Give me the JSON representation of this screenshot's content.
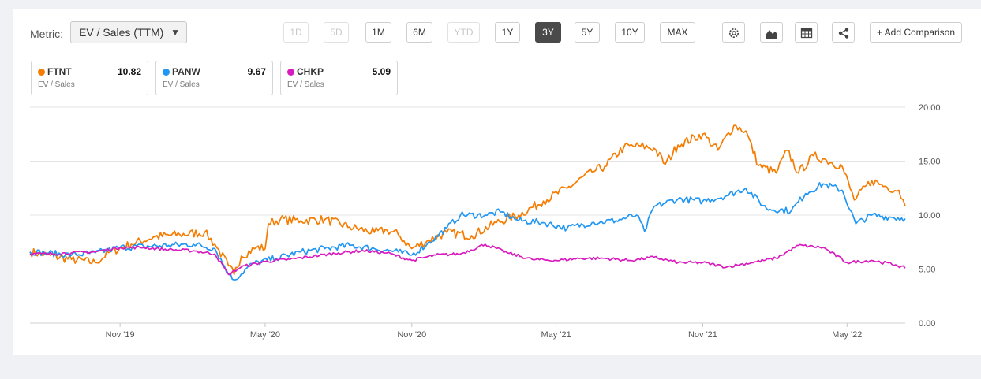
{
  "toolbar": {
    "metric_label": "Metric:",
    "metric_value": "EV / Sales (TTM)",
    "ranges": [
      {
        "label": "1D",
        "state": "disabled"
      },
      {
        "label": "5D",
        "state": "disabled"
      },
      {
        "label": "1M",
        "state": "normal"
      },
      {
        "label": "6M",
        "state": "normal"
      },
      {
        "label": "YTD",
        "state": "disabled"
      },
      {
        "label": "1Y",
        "state": "normal"
      },
      {
        "label": "3Y",
        "state": "active"
      },
      {
        "label": "5Y",
        "state": "normal"
      },
      {
        "label": "10Y",
        "state": "normal"
      },
      {
        "label": "MAX",
        "state": "normal"
      }
    ],
    "icons": [
      "gear-icon",
      "area-chart-icon",
      "table-icon",
      "share-icon"
    ],
    "add_comparison": "+ Add Comparison"
  },
  "legend_cards": [
    {
      "ticker": "FTNT",
      "value": "10.82",
      "metric": "EV / Sales",
      "color": "#f57c00"
    },
    {
      "ticker": "PANW",
      "value": "9.67",
      "metric": "EV / Sales",
      "color": "#2196f3"
    },
    {
      "ticker": "CHKP",
      "value": "5.09",
      "metric": "EV / Sales",
      "color": "#d81bbf"
    }
  ],
  "chart_data": {
    "type": "line",
    "title": "",
    "xlabel": "",
    "ylabel": "",
    "x_range": [
      "2019-07-11",
      "2022-07-13"
    ],
    "ylim": [
      0,
      20
    ],
    "y_ticks": [
      "0.00",
      "5.00",
      "10.00",
      "15.00",
      "20.00"
    ],
    "x_ticks": [
      {
        "date": "2019-11-01",
        "label": "Nov '19"
      },
      {
        "date": "2020-05-01",
        "label": "May '20"
      },
      {
        "date": "2020-11-01",
        "label": "Nov '20"
      },
      {
        "date": "2021-05-01",
        "label": "May '21"
      },
      {
        "date": "2021-11-01",
        "label": "Nov '21"
      },
      {
        "date": "2022-05-01",
        "label": "May '22"
      }
    ],
    "grid": "horizontal",
    "axis_side": "right",
    "series": [
      {
        "name": "FTNT",
        "color": "#f57c00",
        "points": [
          [
            "2019-07-11",
            6.6
          ],
          [
            "2019-08-01",
            6.3
          ],
          [
            "2019-09-01",
            5.9
          ],
          [
            "2019-10-01",
            5.6
          ],
          [
            "2019-10-20",
            6.6
          ],
          [
            "2019-11-15",
            7.3
          ],
          [
            "2019-12-15",
            8.0
          ],
          [
            "2020-01-15",
            8.2
          ],
          [
            "2020-02-15",
            8.4
          ],
          [
            "2020-02-28",
            7.3
          ],
          [
            "2020-03-16",
            5.3
          ],
          [
            "2020-03-23",
            4.5
          ],
          [
            "2020-04-01",
            6.2
          ],
          [
            "2020-04-20",
            7.0
          ],
          [
            "2020-05-01",
            6.9
          ],
          [
            "2020-05-05",
            9.2
          ],
          [
            "2020-05-20",
            9.6
          ],
          [
            "2020-06-15",
            9.5
          ],
          [
            "2020-07-15",
            9.6
          ],
          [
            "2020-08-15",
            8.9
          ],
          [
            "2020-09-15",
            8.4
          ],
          [
            "2020-10-01",
            8.6
          ],
          [
            "2020-10-15",
            8.2
          ],
          [
            "2020-11-01",
            6.9
          ],
          [
            "2020-11-20",
            7.6
          ],
          [
            "2020-12-15",
            8.4
          ],
          [
            "2021-01-15",
            8.1
          ],
          [
            "2021-02-15",
            9.3
          ],
          [
            "2021-03-15",
            10.0
          ],
          [
            "2021-04-15",
            11.3
          ],
          [
            "2021-05-15",
            12.5
          ],
          [
            "2021-06-15",
            14.0
          ],
          [
            "2021-07-01",
            14.5
          ],
          [
            "2021-07-25",
            16.3
          ],
          [
            "2021-08-15",
            16.4
          ],
          [
            "2021-09-01",
            16.2
          ],
          [
            "2021-09-15",
            14.7
          ],
          [
            "2021-10-01",
            16.5
          ],
          [
            "2021-11-01",
            17.5
          ],
          [
            "2021-11-20",
            16.0
          ],
          [
            "2021-12-10",
            18.3
          ],
          [
            "2021-12-25",
            17.8
          ],
          [
            "2022-01-10",
            14.6
          ],
          [
            "2022-02-01",
            13.9
          ],
          [
            "2022-02-15",
            16.0
          ],
          [
            "2022-03-01",
            13.9
          ],
          [
            "2022-03-20",
            15.5
          ],
          [
            "2022-04-05",
            15.1
          ],
          [
            "2022-04-25",
            14.5
          ],
          [
            "2022-05-10",
            11.4
          ],
          [
            "2022-06-01",
            13.2
          ],
          [
            "2022-06-20",
            12.6
          ],
          [
            "2022-07-05",
            12.3
          ],
          [
            "2022-07-13",
            10.82
          ]
        ]
      },
      {
        "name": "PANW",
        "color": "#2196f3",
        "points": [
          [
            "2019-07-11",
            6.6
          ],
          [
            "2019-08-01",
            6.5
          ],
          [
            "2019-09-01",
            6.3
          ],
          [
            "2019-10-01",
            6.5
          ],
          [
            "2019-11-01",
            7.0
          ],
          [
            "2019-12-01",
            7.1
          ],
          [
            "2020-01-01",
            7.2
          ],
          [
            "2020-02-01",
            7.3
          ],
          [
            "2020-02-28",
            6.9
          ],
          [
            "2020-03-16",
            4.6
          ],
          [
            "2020-03-23",
            4.0
          ],
          [
            "2020-04-15",
            5.5
          ],
          [
            "2020-05-15",
            6.0
          ],
          [
            "2020-06-15",
            6.6
          ],
          [
            "2020-07-15",
            6.9
          ],
          [
            "2020-08-15",
            7.2
          ],
          [
            "2020-09-15",
            6.9
          ],
          [
            "2020-10-15",
            6.6
          ],
          [
            "2020-11-01",
            6.3
          ],
          [
            "2020-11-20",
            7.3
          ],
          [
            "2020-12-15",
            8.8
          ],
          [
            "2021-01-01",
            10.0
          ],
          [
            "2021-02-01",
            10.0
          ],
          [
            "2021-02-20",
            10.3
          ],
          [
            "2021-03-15",
            9.5
          ],
          [
            "2021-04-15",
            9.3
          ],
          [
            "2021-05-15",
            8.8
          ],
          [
            "2021-06-15",
            9.3
          ],
          [
            "2021-07-15",
            9.5
          ],
          [
            "2021-08-10",
            10.0
          ],
          [
            "2021-08-20",
            8.5
          ],
          [
            "2021-09-01",
            10.8
          ],
          [
            "2021-10-01",
            11.5
          ],
          [
            "2021-11-01",
            11.3
          ],
          [
            "2021-12-01",
            11.8
          ],
          [
            "2021-12-25",
            12.5
          ],
          [
            "2022-01-20",
            10.6
          ],
          [
            "2022-02-20",
            10.4
          ],
          [
            "2022-03-10",
            12.0
          ],
          [
            "2022-04-01",
            12.9
          ],
          [
            "2022-04-25",
            12.3
          ],
          [
            "2022-05-12",
            9.2
          ],
          [
            "2022-06-01",
            10.0
          ],
          [
            "2022-06-25",
            9.8
          ],
          [
            "2022-07-13",
            9.67
          ]
        ]
      },
      {
        "name": "CHKP",
        "color": "#d81bbf",
        "points": [
          [
            "2019-07-11",
            6.4
          ],
          [
            "2019-08-01",
            6.4
          ],
          [
            "2019-09-01",
            6.5
          ],
          [
            "2019-10-01",
            6.6
          ],
          [
            "2019-11-01",
            7.0
          ],
          [
            "2019-12-01",
            7.0
          ],
          [
            "2020-01-01",
            6.8
          ],
          [
            "2020-02-01",
            6.7
          ],
          [
            "2020-02-28",
            6.4
          ],
          [
            "2020-03-16",
            4.5
          ],
          [
            "2020-04-01",
            5.2
          ],
          [
            "2020-05-01",
            5.7
          ],
          [
            "2020-06-01",
            5.9
          ],
          [
            "2020-07-01",
            6.2
          ],
          [
            "2020-08-01",
            6.5
          ],
          [
            "2020-09-01",
            6.7
          ],
          [
            "2020-10-01",
            6.5
          ],
          [
            "2020-11-01",
            5.8
          ],
          [
            "2020-12-01",
            6.3
          ],
          [
            "2021-01-01",
            6.4
          ],
          [
            "2021-02-01",
            7.3
          ],
          [
            "2021-03-01",
            6.5
          ],
          [
            "2021-04-01",
            5.9
          ],
          [
            "2021-05-01",
            5.8
          ],
          [
            "2021-06-01",
            6.0
          ],
          [
            "2021-07-01",
            6.0
          ],
          [
            "2021-08-01",
            5.8
          ],
          [
            "2021-09-01",
            6.1
          ],
          [
            "2021-10-01",
            5.6
          ],
          [
            "2021-11-01",
            5.6
          ],
          [
            "2021-12-01",
            5.2
          ],
          [
            "2022-01-01",
            5.6
          ],
          [
            "2022-02-01",
            6.0
          ],
          [
            "2022-03-01",
            7.2
          ],
          [
            "2022-04-01",
            7.0
          ],
          [
            "2022-05-01",
            5.6
          ],
          [
            "2022-06-01",
            5.8
          ],
          [
            "2022-07-01",
            5.4
          ],
          [
            "2022-07-13",
            5.09
          ]
        ]
      }
    ]
  }
}
